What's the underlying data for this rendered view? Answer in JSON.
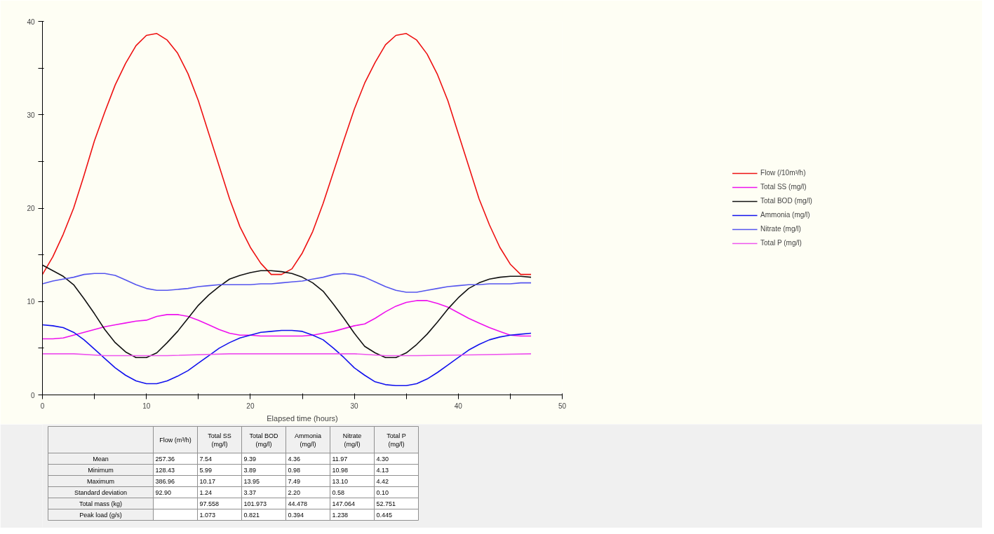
{
  "chart_data": [
    {
      "type": "line",
      "xlabel": "Elapsed time (hours)",
      "x": [
        0,
        1,
        2,
        3,
        4,
        5,
        6,
        7,
        8,
        9,
        10,
        11,
        12,
        13,
        14,
        15,
        16,
        17,
        18,
        19,
        20,
        21,
        22,
        23,
        24,
        25,
        26,
        27,
        28,
        29,
        30,
        31,
        32,
        33,
        34,
        35,
        36,
        37,
        38,
        39,
        40,
        41,
        42,
        43,
        44,
        45,
        46,
        47
      ],
      "series": [
        {
          "name": "Flow (/10m³/h)",
          "color": "#ee1111",
          "values": [
            12.9,
            14.8,
            17.2,
            20,
            23.5,
            27.2,
            30.3,
            33.2,
            35.5,
            37.4,
            38.5,
            38.7,
            38,
            36.6,
            34.4,
            31.5,
            28,
            24.5,
            21,
            18,
            15.8,
            14.1,
            12.9,
            12.9,
            13.5,
            15.2,
            17.5,
            20.5,
            23.9,
            27.3,
            30.6,
            33.4,
            35.6,
            37.5,
            38.5,
            38.7,
            38,
            36.5,
            34.3,
            31.5,
            28,
            24.5,
            21,
            18.2,
            15.8,
            14,
            12.9,
            12.9
          ]
        },
        {
          "name": "Total SS (mg/l)",
          "color": "#ee11ee",
          "values": [
            6.0,
            6.0,
            6.1,
            6.4,
            6.7,
            7.0,
            7.3,
            7.5,
            7.7,
            7.9,
            8.0,
            8.4,
            8.6,
            8.6,
            8.4,
            8.0,
            7.5,
            7.0,
            6.6,
            6.4,
            6.4,
            6.3,
            6.3,
            6.3,
            6.3,
            6.3,
            6.4,
            6.6,
            6.8,
            7.1,
            7.4,
            7.6,
            8.2,
            8.9,
            9.5,
            9.9,
            10.1,
            10.1,
            9.8,
            9.4,
            8.8,
            8.2,
            7.7,
            7.2,
            6.8,
            6.4,
            6.3,
            6.3
          ]
        },
        {
          "name": "Total BOD (mg/l)",
          "color": "#111111",
          "values": [
            13.9,
            13.3,
            12.7,
            11.8,
            10.3,
            8.7,
            7.0,
            5.6,
            4.6,
            4.0,
            4.0,
            4.5,
            5.6,
            6.8,
            8.2,
            9.6,
            10.7,
            11.6,
            12.4,
            12.8,
            13.1,
            13.3,
            13.3,
            13.2,
            13.0,
            12.6,
            12.0,
            11.1,
            9.7,
            8.2,
            6.6,
            5.2,
            4.5,
            4.0,
            4.0,
            4.5,
            5.4,
            6.5,
            7.8,
            9.2,
            10.4,
            11.4,
            12.0,
            12.4,
            12.6,
            12.7,
            12.7,
            12.6
          ]
        },
        {
          "name": "Ammonia (mg/l)",
          "color": "#1111ee",
          "values": [
            7.5,
            7.4,
            7.2,
            6.7,
            5.9,
            4.9,
            3.9,
            2.9,
            2.1,
            1.5,
            1.2,
            1.2,
            1.5,
            2.0,
            2.6,
            3.4,
            4.2,
            5.0,
            5.6,
            6.1,
            6.4,
            6.7,
            6.8,
            6.9,
            6.9,
            6.8,
            6.4,
            5.9,
            5.0,
            4.0,
            2.9,
            2.1,
            1.4,
            1.1,
            1.0,
            1.0,
            1.2,
            1.7,
            2.4,
            3.2,
            4.0,
            4.8,
            5.4,
            5.9,
            6.2,
            6.4,
            6.5,
            6.6
          ]
        },
        {
          "name": "Nitrate (mg/l)",
          "color": "#5555ee",
          "values": [
            11.9,
            12.2,
            12.4,
            12.6,
            12.9,
            13.0,
            13.0,
            12.8,
            12.3,
            11.8,
            11.4,
            11.2,
            11.2,
            11.3,
            11.4,
            11.6,
            11.7,
            11.8,
            11.8,
            11.8,
            11.8,
            11.9,
            11.9,
            12.0,
            12.1,
            12.2,
            12.4,
            12.6,
            12.9,
            13.0,
            12.9,
            12.6,
            12.1,
            11.6,
            11.2,
            11.0,
            11.0,
            11.2,
            11.4,
            11.6,
            11.7,
            11.8,
            11.8,
            11.9,
            11.9,
            11.9,
            12.0,
            12.0
          ]
        },
        {
          "name": "Total P (mg/l)",
          "color": "#ee55ee",
          "x": [
            0,
            3,
            6,
            12,
            18,
            24,
            30,
            33,
            36,
            42,
            47
          ],
          "values": [
            4.4,
            4.4,
            4.2,
            4.2,
            4.4,
            4.4,
            4.4,
            4.2,
            4.2,
            4.3,
            4.4
          ]
        }
      ],
      "xlim": [
        0,
        50
      ],
      "xticks": [
        0,
        {
          "value": 5,
          "label": null
        },
        10,
        {
          "value": 15,
          "label": null
        },
        20,
        {
          "value": 25,
          "label": null
        },
        30,
        {
          "value": 35,
          "label": null
        },
        40,
        {
          "value": 45,
          "label": null
        },
        50
      ],
      "ylim": [
        0,
        40
      ],
      "yticks": [
        0,
        {
          "value": 5,
          "label": null
        },
        10,
        {
          "value": 15,
          "label": null
        },
        20,
        {
          "value": 25,
          "label": null
        },
        30,
        {
          "value": 35,
          "label": null
        },
        40
      ],
      "grid": false,
      "legend": "right"
    },
    {
      "type": "other",
      "categories": [
        "Flow (m³/h)",
        "Total SS (mg/l)",
        "Total BOD (mg/l)",
        "Ammonia (mg/l)",
        "Nitrate (mg/l)",
        "Total P (mg/l)"
      ],
      "y_categories": [
        "Mean",
        "Minimum",
        "Maximum",
        "Standard deviation",
        "Total mass (kg)",
        "Peak load (g/s)"
      ],
      "cell_labels": [
        [
          "257.36",
          "7.54",
          "9.39",
          "4.36",
          "11.97",
          "4.30"
        ],
        [
          "128.43",
          "5.99",
          "3.89",
          "0.98",
          "10.98",
          "4.13"
        ],
        [
          "386.96",
          "10.17",
          "13.95",
          "7.49",
          "13.10",
          "4.42"
        ],
        [
          "92.90",
          "1.24",
          "3.37",
          "2.20",
          "0.58",
          "0.10"
        ],
        [
          null,
          "97.558",
          "101.973",
          "44.478",
          "147.064",
          "52.751"
        ],
        [
          null,
          "1.073",
          "0.821",
          "0.394",
          "1.238",
          "0.445"
        ]
      ]
    }
  ]
}
